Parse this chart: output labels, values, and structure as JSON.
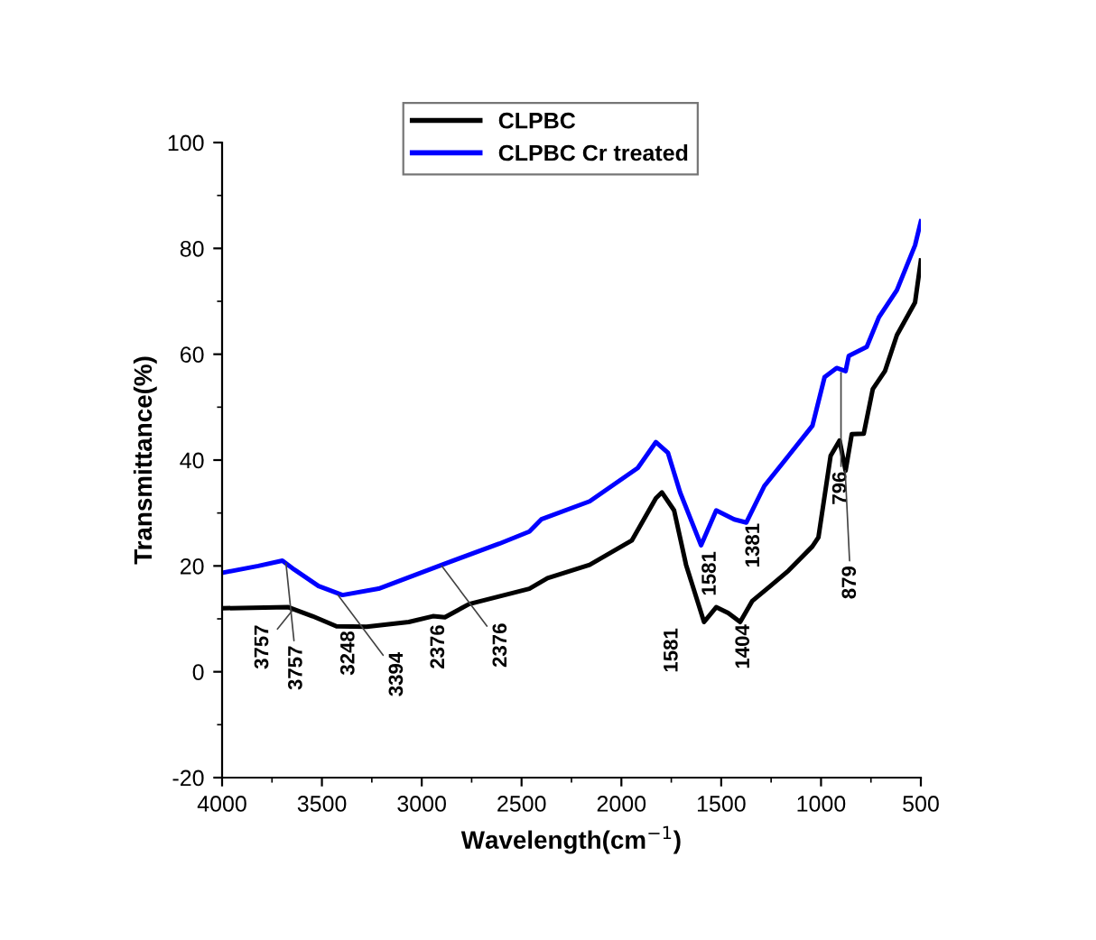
{
  "chart_data": {
    "type": "line",
    "xlabel": "Wavelength(cm$^{−1}$)",
    "ylabel": "Transmittance(%)",
    "xlim": [
      4000,
      500
    ],
    "xticks": [
      4000,
      3500,
      3000,
      2500,
      2000,
      1500,
      1000,
      500
    ],
    "ylim": [
      -20,
      100
    ],
    "yticks": [
      -20,
      0,
      20,
      40,
      60,
      80,
      100
    ],
    "grid": false,
    "legend": "top",
    "series": [
      {
        "name": "CLPBC",
        "color": "#000000",
        "x": [
          4000,
          3668,
          3547,
          3427,
          3276,
          3065,
          2944,
          2884,
          2763,
          2461,
          2370,
          2159,
          1948,
          1827,
          1797,
          1736,
          1676,
          1586,
          1525,
          1465,
          1405,
          1344,
          1254,
          1163,
          1043,
          1013,
          952,
          907,
          877,
          846,
          786,
          741,
          680,
          620,
          529,
          500
        ],
        "values": [
          12.0,
          12.2,
          10.5,
          8.6,
          8.5,
          9.4,
          10.5,
          10.3,
          12.8,
          15.7,
          17.7,
          20.2,
          24.8,
          32.8,
          33.9,
          30.5,
          20.2,
          9.4,
          12.2,
          11.1,
          9.4,
          13.4,
          16.2,
          19.1,
          23.7,
          25.4,
          40.8,
          43.7,
          38.0,
          44.9,
          45.0,
          53.4,
          56.8,
          63.6,
          69.8,
          77.7
        ]
      },
      {
        "name": "CLPBC Cr treated",
        "color": "#0000ff",
        "x": [
          4000,
          3819,
          3698,
          3638,
          3517,
          3397,
          3216,
          2914,
          2612,
          2461,
          2401,
          2159,
          1918,
          1827,
          1767,
          1706,
          1601,
          1525,
          1435,
          1374,
          1284,
          1163,
          1043,
          982,
          922,
          877,
          861,
          771,
          710,
          620,
          529,
          500
        ],
        "values": [
          18.7,
          20.0,
          21.0,
          19.3,
          16.2,
          14.5,
          15.7,
          20.0,
          24.2,
          26.5,
          28.8,
          32.2,
          38.5,
          43.4,
          41.4,
          33.9,
          23.9,
          30.5,
          28.8,
          28.2,
          35.1,
          40.8,
          46.5,
          55.7,
          57.4,
          56.8,
          59.7,
          61.4,
          67.0,
          72.1,
          80.6,
          85.1
        ]
      }
    ],
    "annotations": [
      {
        "text": "3757",
        "x": 3680,
        "y": 20.5
      },
      {
        "text": "3757",
        "x": 3650,
        "y": 11.5
      },
      {
        "text": "3248",
        "x": 3400,
        "y": 8.3
      },
      {
        "text": "3394",
        "x": 3420,
        "y": 14.5
      },
      {
        "text": "2376",
        "x": 2950,
        "y": 10.5
      },
      {
        "text": "2376",
        "x": 2900,
        "y": 20
      },
      {
        "text": "1581",
        "x": 1600,
        "y": 9.5
      },
      {
        "text": "1581",
        "x": 1581,
        "y": 24
      },
      {
        "text": "1404",
        "x": 1404,
        "y": 9.5
      },
      {
        "text": "1381",
        "x": 1381,
        "y": 28.3
      },
      {
        "text": "796",
        "x": 900,
        "y": 56.5
      },
      {
        "text": "879",
        "x": 879,
        "y": 38
      }
    ]
  }
}
